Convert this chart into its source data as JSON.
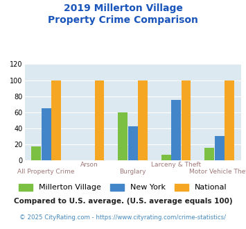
{
  "title_line1": "2019 Millerton Village",
  "title_line2": "Property Crime Comparison",
  "categories": [
    "All Property Crime",
    "Arson",
    "Burglary",
    "Larceny & Theft",
    "Motor Vehicle Theft"
  ],
  "series": {
    "Millerton Village": [
      17,
      0,
      60,
      7,
      16
    ],
    "New York": [
      65,
      0,
      42,
      75,
      30
    ],
    "National": [
      100,
      100,
      100,
      100,
      100
    ]
  },
  "colors": {
    "Millerton Village": "#7bc043",
    "New York": "#4285c8",
    "National": "#f5a623"
  },
  "ylim": [
    0,
    120
  ],
  "yticks": [
    0,
    20,
    40,
    60,
    80,
    100,
    120
  ],
  "bg_color": "#dce9f0",
  "title_color": "#1a55bb",
  "xlabel_color": "#a07878",
  "footnote1": "Compared to U.S. average. (U.S. average equals 100)",
  "footnote2": "© 2025 CityRating.com - https://www.cityrating.com/crime-statistics/",
  "footnote1_color": "#222222",
  "footnote2_color": "#4488bb"
}
